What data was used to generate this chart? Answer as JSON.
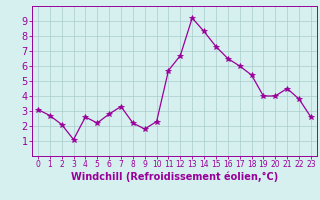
{
  "x": [
    0,
    1,
    2,
    3,
    4,
    5,
    6,
    7,
    8,
    9,
    10,
    11,
    12,
    13,
    14,
    15,
    16,
    17,
    18,
    19,
    20,
    21,
    22,
    23
  ],
  "y": [
    3.1,
    2.7,
    2.1,
    1.1,
    2.6,
    2.2,
    2.8,
    3.3,
    2.2,
    1.8,
    2.3,
    5.7,
    6.7,
    9.2,
    8.3,
    7.3,
    6.5,
    6.0,
    5.4,
    4.0,
    4.0,
    4.5,
    3.8,
    2.6
  ],
  "line_color": "#990099",
  "marker": "*",
  "marker_size": 4,
  "bg_color": "#d6f0f0",
  "grid_color": "#aacccc",
  "xlabel": "Windchill (Refroidissement éolien,°C)",
  "xlabel_color": "#990099",
  "xlabel_fontsize": 7,
  "tick_color": "#990099",
  "tick_fontsize_x": 5.5,
  "tick_fontsize_y": 7,
  "ylim": [
    0,
    10
  ],
  "xlim": [
    -0.5,
    23.5
  ],
  "yticks": [
    1,
    2,
    3,
    4,
    5,
    6,
    7,
    8,
    9
  ],
  "xticks": [
    0,
    1,
    2,
    3,
    4,
    5,
    6,
    7,
    8,
    9,
    10,
    11,
    12,
    13,
    14,
    15,
    16,
    17,
    18,
    19,
    20,
    21,
    22,
    23
  ]
}
